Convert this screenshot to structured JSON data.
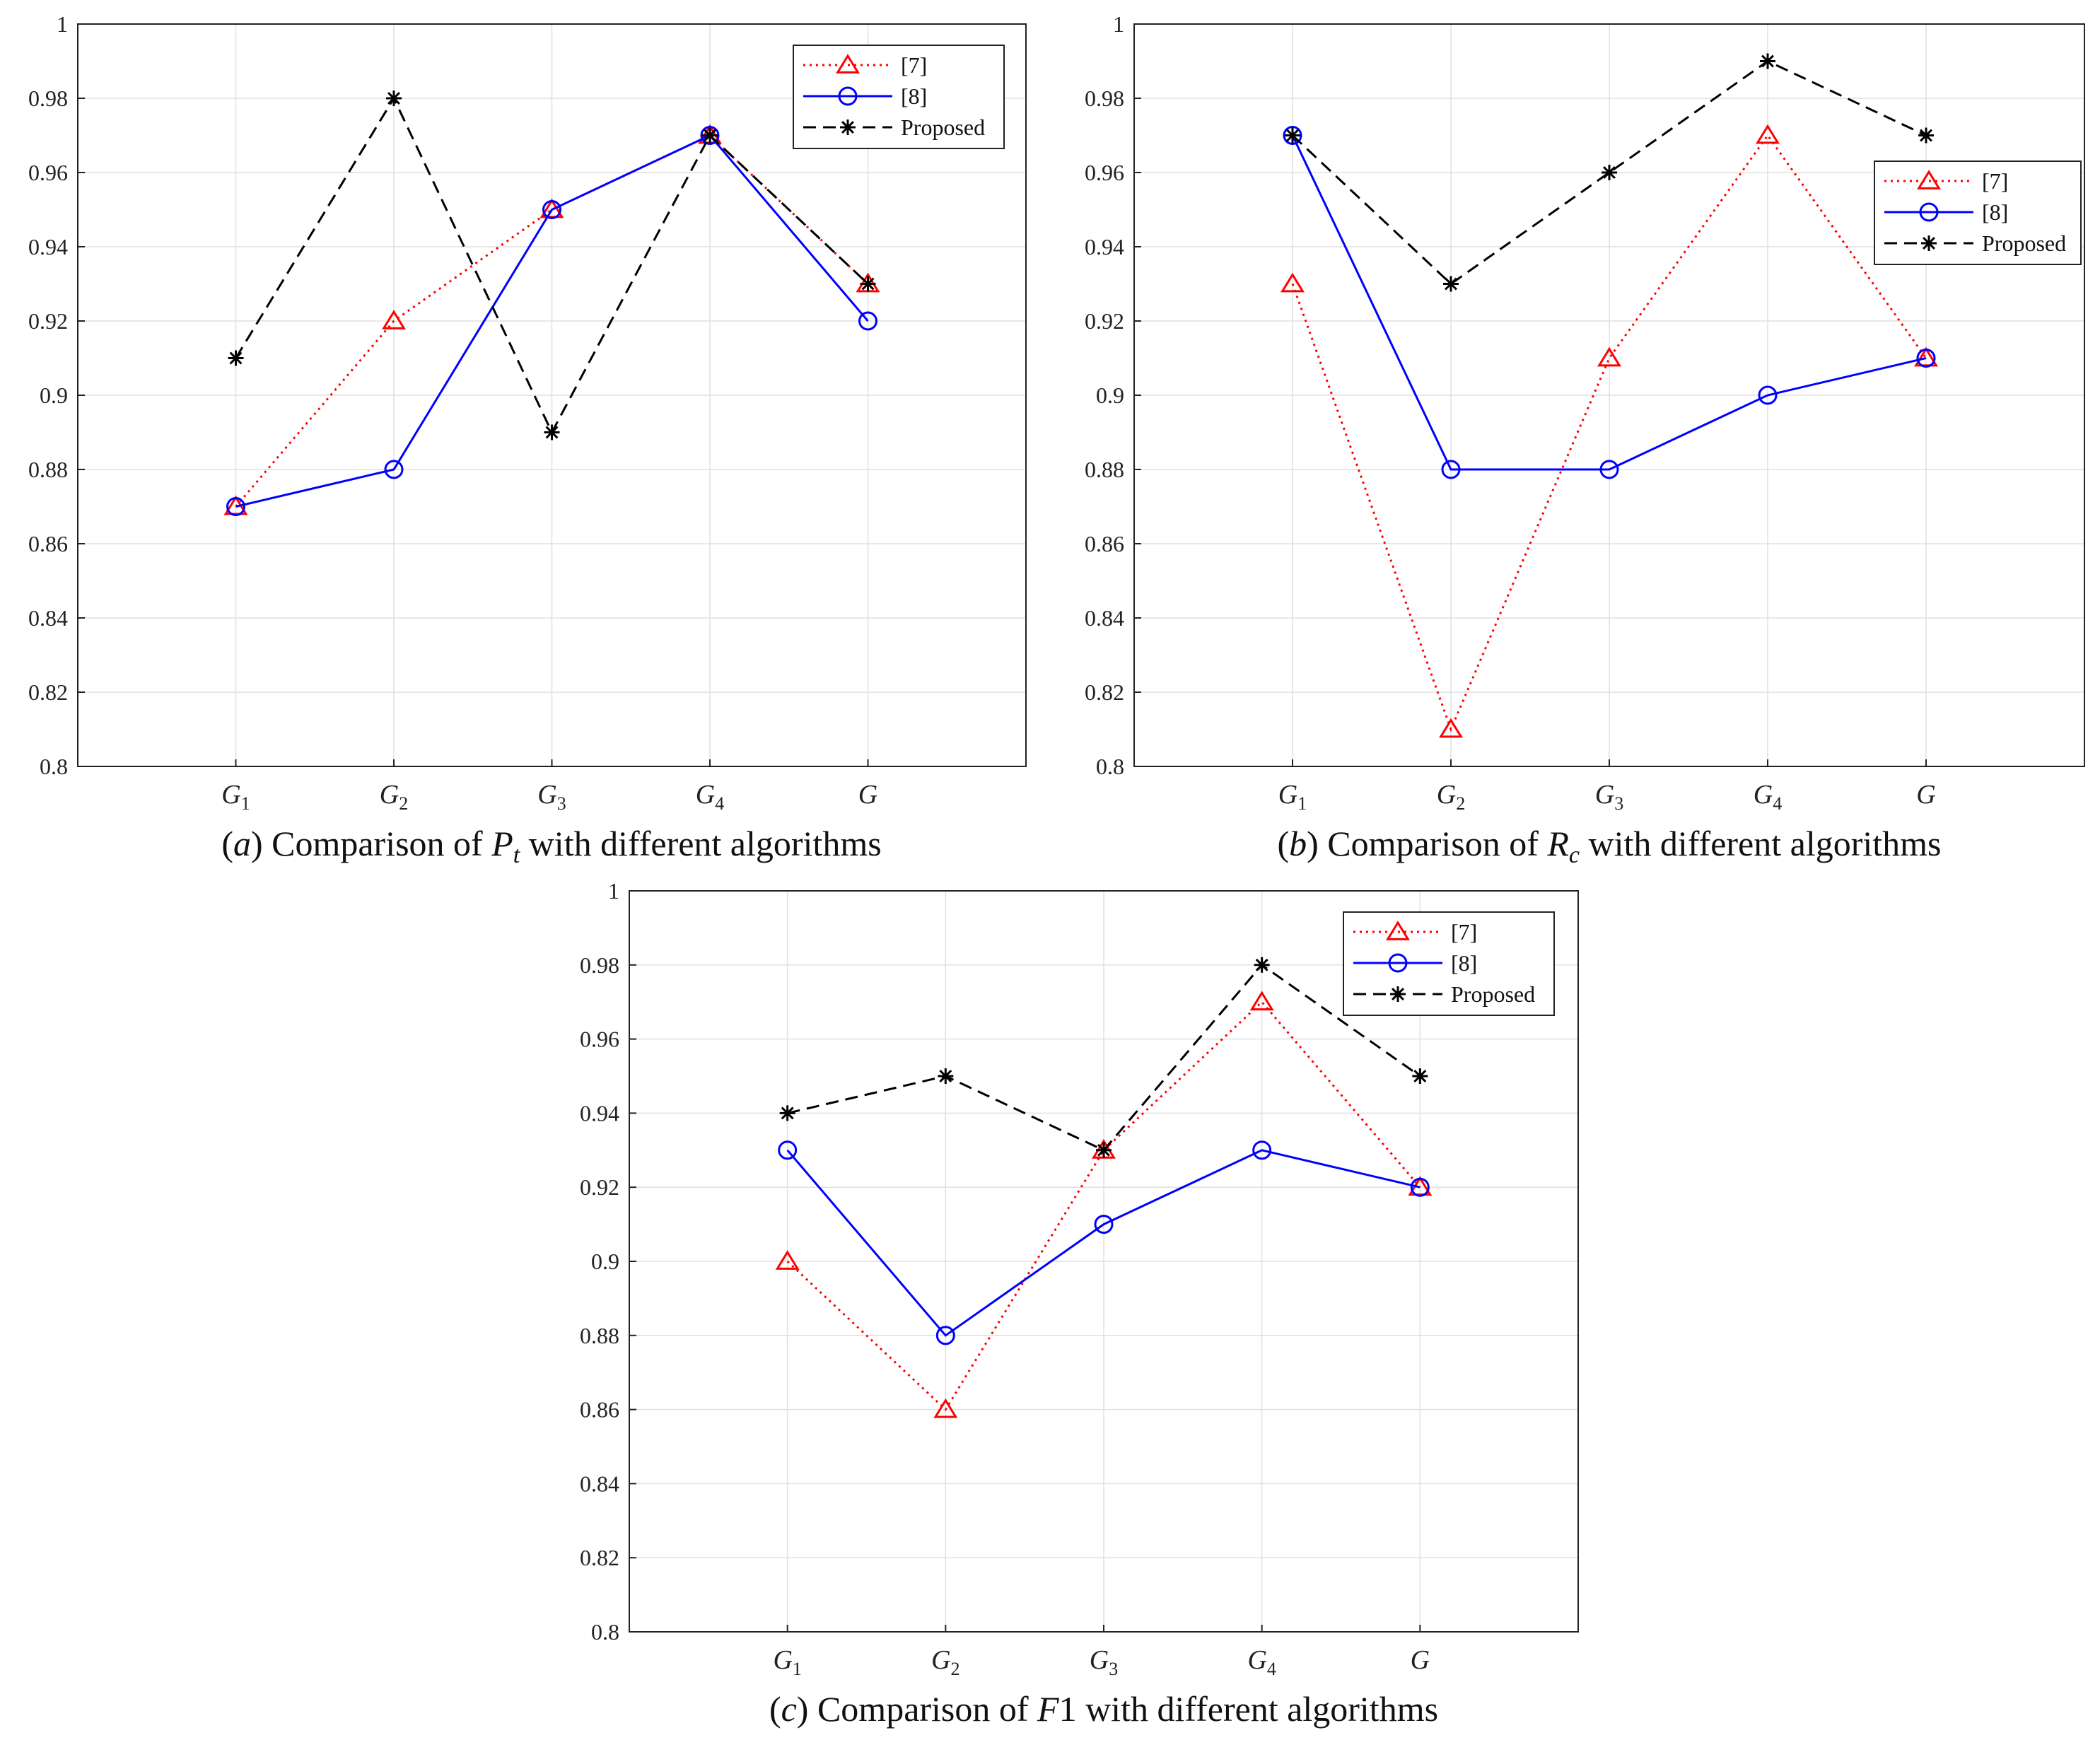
{
  "figure": {
    "series_styles": [
      {
        "name": "[7]",
        "color": "#ff0000",
        "dash": "dotted",
        "marker": "triangle"
      },
      {
        "name": "[8]",
        "color": "#0000ff",
        "dash": "solid",
        "marker": "circle"
      },
      {
        "name": "Proposed",
        "color": "#000000",
        "dash": "dashed",
        "marker": "asterisk"
      }
    ]
  },
  "chart_data": [
    {
      "type": "line",
      "id": "a",
      "caption": {
        "prefix": "(",
        "letter": "a",
        "pre": ") Comparison of ",
        "sym": "P",
        "sub": "t",
        "post": " with different algorithms"
      },
      "categories": [
        {
          "base": "G",
          "sub": "1"
        },
        {
          "base": "G",
          "sub": "2"
        },
        {
          "base": "G",
          "sub": "3"
        },
        {
          "base": "G",
          "sub": "4"
        },
        {
          "base": "G",
          "sub": ""
        }
      ],
      "ylim": [
        0.8,
        1
      ],
      "yticks": [
        "0.8",
        "0.82",
        "0.84",
        "0.86",
        "0.88",
        "0.9",
        "0.92",
        "0.94",
        "0.96",
        "0.98",
        "1"
      ],
      "grid": true,
      "legend_position": "top-right",
      "series": [
        {
          "name": "[7]",
          "values": [
            0.87,
            0.92,
            0.95,
            0.97,
            0.93
          ]
        },
        {
          "name": "[8]",
          "values": [
            0.87,
            0.88,
            0.95,
            0.97,
            0.92
          ]
        },
        {
          "name": "Proposed",
          "values": [
            0.91,
            0.98,
            0.89,
            0.97,
            0.93
          ]
        }
      ]
    },
    {
      "type": "line",
      "id": "b",
      "caption": {
        "prefix": "(",
        "letter": "b",
        "pre": ") Comparison of ",
        "sym": "R",
        "sub": "c",
        "post": " with different algorithms"
      },
      "categories": [
        {
          "base": "G",
          "sub": "1"
        },
        {
          "base": "G",
          "sub": "2"
        },
        {
          "base": "G",
          "sub": "3"
        },
        {
          "base": "G",
          "sub": "4"
        },
        {
          "base": "G",
          "sub": ""
        }
      ],
      "ylim": [
        0.8,
        1
      ],
      "yticks": [
        "0.8",
        "0.82",
        "0.84",
        "0.86",
        "0.88",
        "0.9",
        "0.92",
        "0.94",
        "0.96",
        "0.98",
        "1"
      ],
      "grid": true,
      "legend_position": "right",
      "series": [
        {
          "name": "[7]",
          "values": [
            0.93,
            0.81,
            0.91,
            0.97,
            0.91
          ]
        },
        {
          "name": "[8]",
          "values": [
            0.97,
            0.88,
            0.88,
            0.9,
            0.91
          ]
        },
        {
          "name": "Proposed",
          "values": [
            0.97,
            0.93,
            0.96,
            0.99,
            0.97
          ]
        }
      ]
    },
    {
      "type": "line",
      "id": "c",
      "caption": {
        "prefix": "(",
        "letter": "c",
        "pre": ") Comparison of ",
        "sym": "F",
        "sub": "",
        "post": "1 with different algorithms"
      },
      "categories": [
        {
          "base": "G",
          "sub": "1"
        },
        {
          "base": "G",
          "sub": "2"
        },
        {
          "base": "G",
          "sub": "3"
        },
        {
          "base": "G",
          "sub": "4"
        },
        {
          "base": "G",
          "sub": ""
        }
      ],
      "ylim": [
        0.8,
        1
      ],
      "yticks": [
        "0.8",
        "0.82",
        "0.84",
        "0.86",
        "0.88",
        "0.9",
        "0.92",
        "0.94",
        "0.96",
        "0.98",
        "1"
      ],
      "grid": true,
      "legend_position": "top-right",
      "series": [
        {
          "name": "[7]",
          "values": [
            0.9,
            0.86,
            0.93,
            0.97,
            0.92
          ]
        },
        {
          "name": "[8]",
          "values": [
            0.93,
            0.88,
            0.91,
            0.93,
            0.92
          ]
        },
        {
          "name": "Proposed",
          "values": [
            0.94,
            0.95,
            0.93,
            0.98,
            0.95
          ]
        }
      ]
    }
  ]
}
